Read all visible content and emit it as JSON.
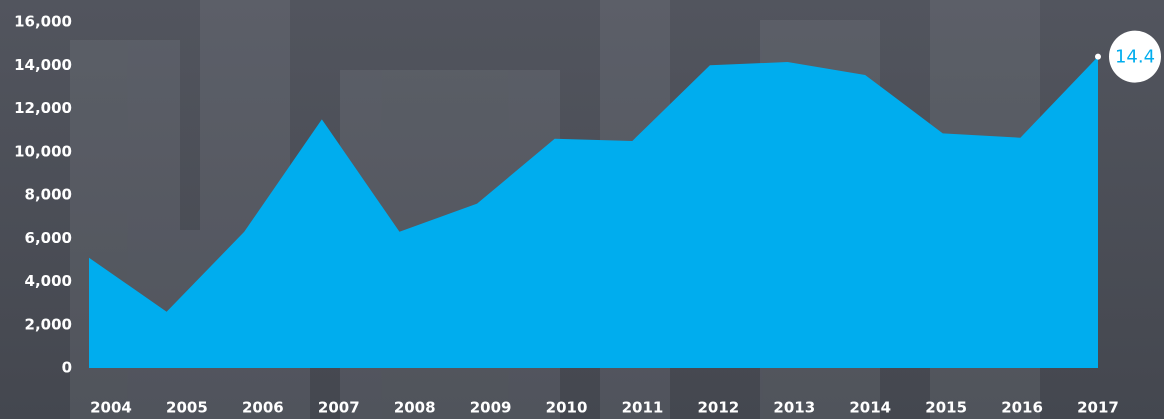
{
  "chart_data": {
    "type": "area",
    "categories": [
      "2004",
      "2005",
      "2006",
      "2007",
      "2008",
      "2009",
      "2010",
      "2011",
      "2012",
      "2013",
      "2014",
      "2015",
      "2016",
      "2017"
    ],
    "values": [
      5100,
      2600,
      6300,
      11500,
      6300,
      7600,
      10600,
      10500,
      14000,
      14150,
      13550,
      10850,
      10650,
      14400
    ],
    "value_labels": [
      null,
      null,
      null,
      null,
      null,
      null,
      null,
      null,
      null,
      null,
      null,
      null,
      null,
      "14.4"
    ],
    "color": "#00adee",
    "ylim": [
      0,
      16000
    ],
    "yticks": [
      0,
      {
        "value": 2000,
        "label": "2,000"
      },
      {
        "value": 4000,
        "label": "4,000"
      },
      {
        "value": 6000,
        "label": "6,000"
      },
      {
        "value": 8000,
        "label": "8,000"
      },
      {
        "value": 10000,
        "label": "10,000"
      },
      {
        "value": 12000,
        "label": "12,000"
      },
      {
        "value": 14000,
        "label": "14,000"
      },
      {
        "value": 16000,
        "label": "16,000"
      }
    ],
    "grid": false
  }
}
